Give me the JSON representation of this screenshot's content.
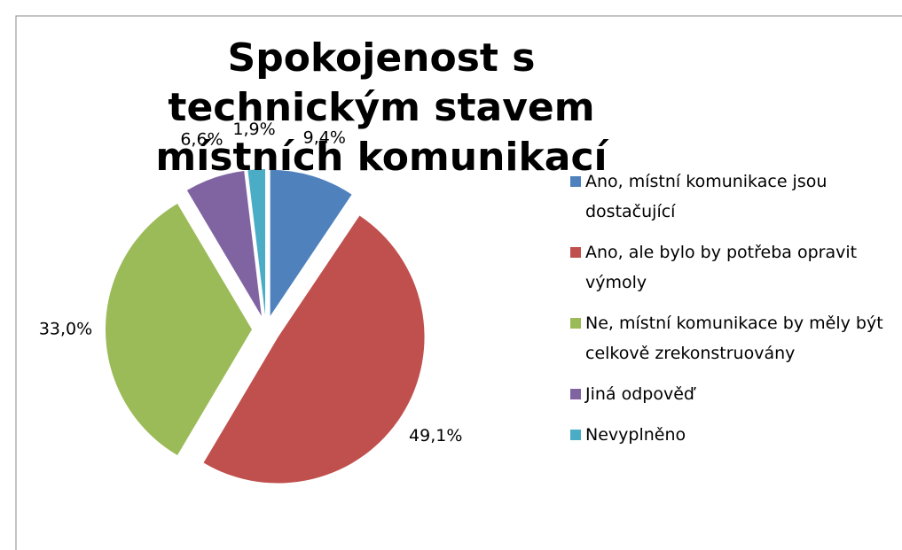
{
  "chart_data": {
    "type": "pie",
    "title": "Spokojenost s technickým stavem místních komunikací",
    "categories": [
      "Ano, místní komunikace jsou dostačující",
      "Ano, ale bylo by potřeba opravit výmoly",
      "Ne, místní komunikace by měly být celkově zrekonstruovány",
      "Jiná odpověď",
      "Nevyplněno"
    ],
    "values": [
      9.4,
      49.1,
      33.0,
      6.6,
      1.9
    ],
    "value_labels": [
      "9,4%",
      "49,1%",
      "33,0%",
      "6,6%",
      "1,9%"
    ],
    "colors": [
      "#4f81bd",
      "#c0504d",
      "#9bbb59",
      "#8064a2",
      "#4bacc6"
    ],
    "legend": "right"
  }
}
